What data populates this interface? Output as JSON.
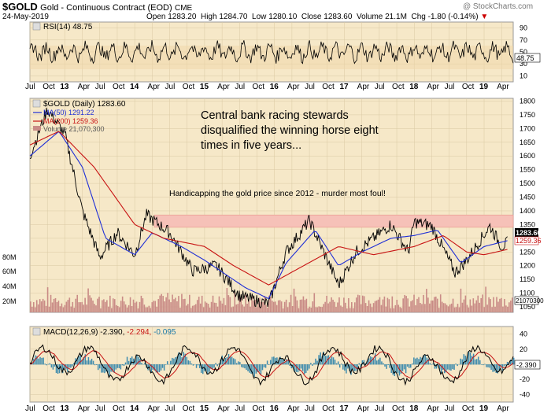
{
  "header": {
    "symbol": "$GOLD",
    "name": "Gold - Continuous Contract (EOD)",
    "exchange": "CME",
    "date": "24-May-2019",
    "open_label": "Open",
    "open": "1283.20",
    "high_label": "High",
    "high": "1284.70",
    "low_label": "Low",
    "low": "1280.10",
    "close_label": "Close",
    "close": "1283.60",
    "volume_label": "Volume",
    "volume": "21.1M",
    "chg_label": "Chg",
    "chg": "-1.80 (-0.14%)",
    "chg_color": "#cc0000",
    "watermark": "@ StockCharts.com"
  },
  "rsi": {
    "label": "RSI(14) 48.75",
    "current": "48.75",
    "ticks": [
      "90",
      "70",
      "50",
      "30",
      "10"
    ]
  },
  "price": {
    "title_label": "$GOLD (Daily) 1283.60",
    "ma50_label": "MA(50) 1291.22",
    "ma200_label": "MA(200) 1259.36",
    "volume_label": "Volume 21,070,300",
    "current_price_tag": "1283.60",
    "ma200_tag": "1259.36",
    "volume_tag": "21070300",
    "ticks": [
      "1800",
      "1750",
      "1700",
      "1650",
      "1600",
      "1550",
      "1500",
      "1450",
      "1400",
      "1350",
      "1300",
      "1250",
      "1200",
      "1150",
      "1100",
      "1050"
    ],
    "volume_ticks": [
      "80M",
      "60M",
      "40M",
      "20M"
    ],
    "annotation_main": [
      "Central bank racing stewards",
      "disqualified the winning horse eight",
      "times in five years..."
    ],
    "annotation_band": "Handicapping the gold price since 2012 - murder most foul!",
    "colors": {
      "price": "#000000",
      "ma50": "#1f2fd6",
      "ma200": "#c81414",
      "band": "#f6c1b8",
      "volume": "#c98b86"
    }
  },
  "macd": {
    "label": "MACD(12,26,9) -2.390, -2.294, -0.095",
    "label_a": "MACD(12,26,9)",
    "label_b": "-2.390,",
    "label_c": "-2.294,",
    "label_d": "-0.095",
    "current": "-2.390",
    "ticks": [
      "40",
      "20",
      "0",
      "-20",
      "-40"
    ],
    "colors": {
      "macd": "#000000",
      "signal": "#c81414",
      "hist": "#1d7aa8"
    }
  },
  "x_axis": {
    "labels": [
      "Jul",
      "Oct",
      "13",
      "Apr",
      "Jul",
      "Oct",
      "14",
      "Apr",
      "Jul",
      "Oct",
      "15",
      "Apr",
      "Jul",
      "Oct",
      "16",
      "Apr",
      "Jul",
      "Oct",
      "17",
      "Apr",
      "Jul",
      "Oct",
      "18",
      "Apr",
      "Jul",
      "Oct",
      "19",
      "Apr"
    ]
  },
  "chart_data": {
    "type": "line",
    "title": "$GOLD (Daily) 1283.60",
    "x_range": [
      "Jul 2012",
      "May 2019"
    ],
    "ylim": [
      1030,
      1810
    ],
    "series": [
      {
        "name": "$GOLD",
        "x": [
          "2012-07",
          "2012-10",
          "2013-01",
          "2013-04",
          "2013-07",
          "2013-10",
          "2014-01",
          "2014-03",
          "2014-07",
          "2014-11",
          "2015-03",
          "2015-07",
          "2015-12",
          "2016-03",
          "2016-07",
          "2016-12",
          "2017-03",
          "2017-09",
          "2017-12",
          "2018-01",
          "2018-04",
          "2018-08",
          "2018-10",
          "2019-02",
          "2019-04",
          "2019-05"
        ],
        "values": [
          1600,
          1770,
          1680,
          1400,
          1230,
          1320,
          1240,
          1385,
          1320,
          1180,
          1200,
          1090,
          1060,
          1250,
          1365,
          1130,
          1250,
          1350,
          1250,
          1360,
          1345,
          1175,
          1220,
          1345,
          1270,
          1283.6
        ]
      },
      {
        "name": "MA(50)",
        "x": [
          "2012-07",
          "2012-12",
          "2013-04",
          "2013-08",
          "2014-01",
          "2014-04",
          "2014-09",
          "2015-01",
          "2015-08",
          "2015-12",
          "2016-03",
          "2016-08",
          "2016-12",
          "2017-04",
          "2017-09",
          "2018-01",
          "2018-05",
          "2018-09",
          "2019-01",
          "2019-05"
        ],
        "values": [
          1600,
          1690,
          1560,
          1300,
          1240,
          1320,
          1270,
          1220,
          1120,
          1080,
          1210,
          1330,
          1200,
          1250,
          1300,
          1310,
          1330,
          1210,
          1270,
          1291.22
        ]
      },
      {
        "name": "MA(200)",
        "x": [
          "2012-07",
          "2012-12",
          "2013-06",
          "2014-01",
          "2014-06",
          "2015-01",
          "2015-06",
          "2015-12",
          "2016-06",
          "2016-12",
          "2017-06",
          "2018-01",
          "2018-06",
          "2018-10",
          "2019-01",
          "2019-05"
        ],
        "values": [
          1640,
          1690,
          1560,
          1350,
          1300,
          1270,
          1200,
          1130,
          1200,
          1270,
          1240,
          1270,
          1310,
          1250,
          1240,
          1259.36
        ]
      }
    ],
    "annotations": [
      "Central bank racing stewards disqualified the winning horse eight times in five years...",
      "Handicapping the gold price since 2012 - murder most foul!"
    ],
    "band": {
      "from": 1340,
      "to": 1385
    },
    "grid": true
  }
}
